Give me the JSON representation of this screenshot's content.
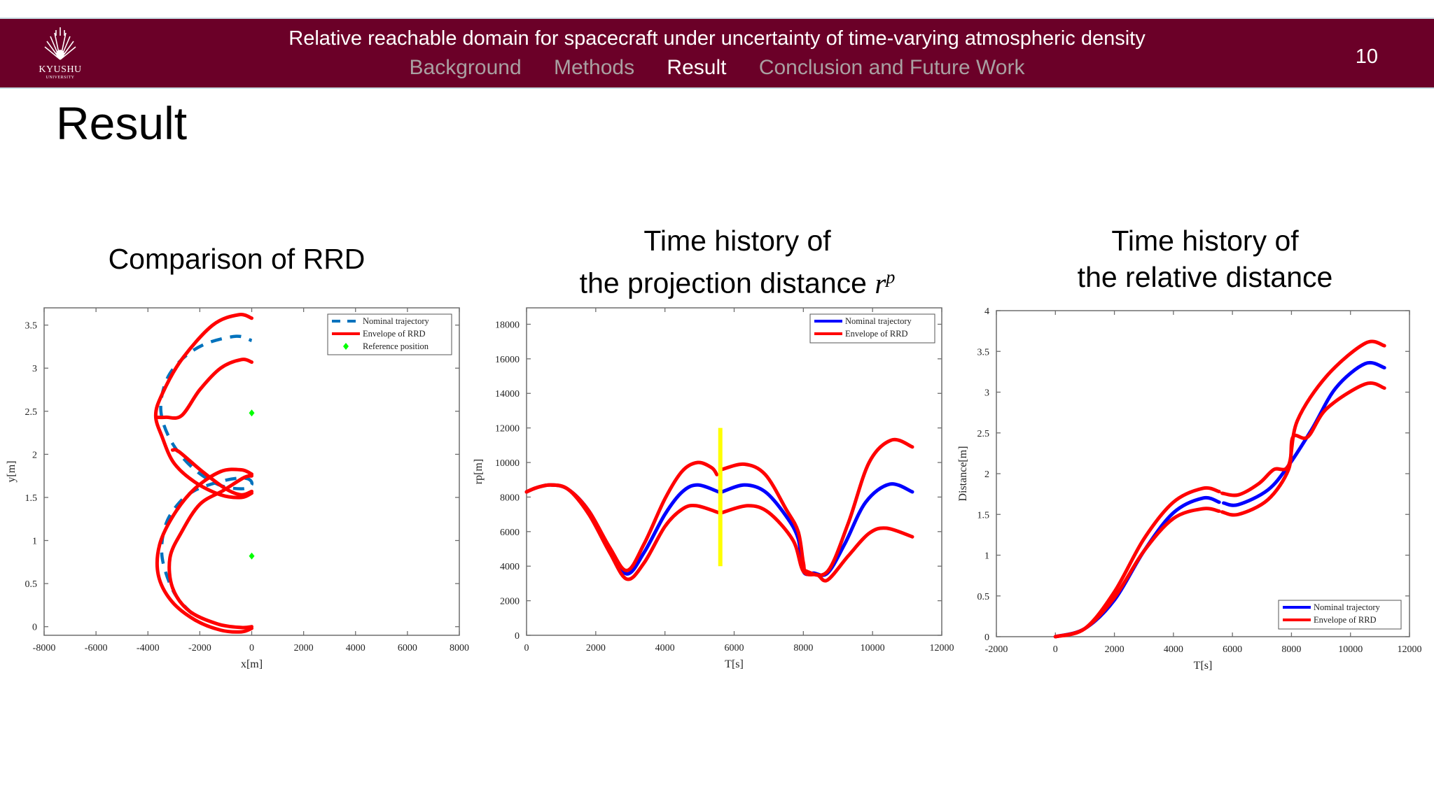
{
  "header": {
    "title": "Relative reachable domain for spacecraft under uncertainty of time-varying atmospheric density",
    "nav": [
      {
        "label": "Background",
        "active": false
      },
      {
        "label": "Methods",
        "active": false
      },
      {
        "label": "Result",
        "active": true
      },
      {
        "label": "Conclusion and Future Work",
        "active": false
      }
    ],
    "page_number": "10",
    "logo": {
      "name": "KYUSHU",
      "sub": "UNIVERSITY",
      "icon": "university-crest-icon"
    },
    "colors": {
      "bar": "#6b0028",
      "active": "#ffffff",
      "inactive": "#a9a0a2"
    }
  },
  "slide_title": "Result",
  "chart_titles": [
    {
      "line1": "Comparison of RRD"
    },
    {
      "line1": "Time history of",
      "line2": "the projection distance",
      "symbol": "r",
      "superscript": "p"
    },
    {
      "line1": "Time history of",
      "line2": "the relative distance"
    }
  ],
  "chart_data": [
    {
      "type": "line",
      "xlabel": "x[m]",
      "ylabel": "y[m]",
      "xlim": [
        -8000,
        8000
      ],
      "ylim": [
        -0.1,
        3.7
      ],
      "xticks": [
        -8000,
        -6000,
        -4000,
        -2000,
        0,
        2000,
        4000,
        6000,
        8000
      ],
      "yticks": [
        0,
        0.5,
        1,
        1.5,
        2,
        2.5,
        3,
        3.5
      ],
      "grid": false,
      "legend_position": "top-right",
      "series": [
        {
          "name": "Nominal trajectory",
          "color": "#0072bd",
          "style": "dashed",
          "segments": [
            [
              [
                -2300,
                0.15
              ],
              [
                -3000,
                0.4
              ],
              [
                -3450,
                0.8
              ],
              [
                -3350,
                1.15
              ],
              [
                -2900,
                1.4
              ],
              [
                -2200,
                1.58
              ],
              [
                -1000,
                1.7
              ],
              [
                -200,
                1.72
              ],
              [
                0,
                1.65
              ],
              [
                -400,
                1.6
              ],
              [
                -1300,
                1.65
              ],
              [
                -2300,
                1.85
              ],
              [
                -3100,
                2.15
              ],
              [
                -3500,
                2.5
              ],
              [
                -3300,
                2.85
              ],
              [
                -2700,
                3.1
              ],
              [
                -1800,
                3.28
              ],
              [
                -600,
                3.37
              ],
              [
                0,
                3.32
              ]
            ]
          ]
        },
        {
          "name": "Envelope of RRD",
          "color": "#ff0000",
          "style": "solid",
          "segments": [
            [
              [
                0,
                3.58
              ],
              [
                -500,
                3.62
              ],
              [
                -1500,
                3.5
              ],
              [
                -2700,
                3.1
              ],
              [
                -3450,
                2.7
              ],
              [
                -3700,
                2.45
              ],
              [
                -3450,
                2.2
              ],
              [
                -3000,
                1.9
              ],
              [
                -2200,
                1.68
              ],
              [
                -1200,
                1.53
              ],
              [
                -400,
                1.5
              ],
              [
                0,
                1.55
              ]
            ],
            [
              [
                0,
                3.07
              ],
              [
                -400,
                3.1
              ],
              [
                -1200,
                3.0
              ],
              [
                -2000,
                2.75
              ],
              [
                -2700,
                2.45
              ],
              [
                -3300,
                2.43
              ],
              [
                -3650,
                2.43
              ]
            ],
            [
              [
                -3050,
                2.05
              ],
              [
                -2800,
                2.03
              ],
              [
                -1900,
                1.8
              ],
              [
                -1000,
                1.6
              ],
              [
                -400,
                1.53
              ],
              [
                0,
                1.57
              ]
            ],
            [
              [
                0,
                1.77
              ],
              [
                -400,
                1.82
              ],
              [
                -1200,
                1.8
              ],
              [
                -2200,
                1.6
              ],
              [
                -3000,
                1.3
              ],
              [
                -3550,
                0.95
              ],
              [
                -3600,
                0.6
              ],
              [
                -3100,
                0.3
              ],
              [
                -2200,
                0.08
              ],
              [
                -1200,
                -0.04
              ],
              [
                -400,
                -0.06
              ],
              [
                0,
                -0.02
              ]
            ],
            [
              [
                0,
                1.75
              ],
              [
                -300,
                1.73
              ],
              [
                -1100,
                1.58
              ],
              [
                -2000,
                1.42
              ],
              [
                -2700,
                1.1
              ],
              [
                -3150,
                0.8
              ],
              [
                -3050,
                0.45
              ],
              [
                -2400,
                0.18
              ],
              [
                -1300,
                0.03
              ],
              [
                -400,
                -0.01
              ],
              [
                0,
                0.0
              ]
            ]
          ]
        },
        {
          "name": "Reference position",
          "color": "#00ff00",
          "style": "marker",
          "points": [
            [
              0,
              2.48
            ],
            [
              0,
              0.82
            ]
          ]
        }
      ]
    },
    {
      "type": "line",
      "xlabel": "T[s]",
      "ylabel": "rp[m]",
      "xlim": [
        0,
        12000
      ],
      "ylim": [
        0,
        18950
      ],
      "xticks": [
        0,
        2000,
        4000,
        6000,
        8000,
        10000,
        12000
      ],
      "yticks": [
        0,
        2000,
        4000,
        6000,
        8000,
        10000,
        12000,
        14000,
        16000,
        18000
      ],
      "grid": false,
      "legend_position": "top-right",
      "series": [
        {
          "name": "Nominal trajectory",
          "color": "#0000ff",
          "style": "solid",
          "segments": [
            [
              [
                0,
                8300
              ],
              [
                300,
                8550
              ],
              [
                700,
                8700
              ],
              [
                1200,
                8450
              ],
              [
                1800,
                7200
              ],
              [
                2400,
                5000
              ],
              [
                2900,
                3550
              ],
              [
                3400,
                4800
              ],
              [
                4000,
                7000
              ],
              [
                4500,
                8300
              ],
              [
                4950,
                8700
              ],
              [
                5550,
                8300
              ]
            ],
            [
              [
                5650,
                8300
              ],
              [
                6300,
                8700
              ],
              [
                6900,
                8300
              ],
              [
                7500,
                6900
              ],
              [
                7850,
                5600
              ],
              [
                8000,
                3700
              ],
              [
                8300,
                3600
              ],
              [
                8700,
                3600
              ],
              [
                9200,
                5300
              ],
              [
                9800,
                7700
              ],
              [
                10500,
                8750
              ],
              [
                11150,
                8300
              ]
            ]
          ]
        },
        {
          "name": "Envelope of RRD",
          "color": "#ff0000",
          "style": "solid",
          "segments": [
            [
              [
                0,
                8300
              ],
              [
                300,
                8550
              ],
              [
                700,
                8700
              ],
              [
                1200,
                8450
              ],
              [
                1800,
                7200
              ],
              [
                2400,
                5100
              ],
              [
                2900,
                3750
              ],
              [
                3400,
                5300
              ],
              [
                4000,
                7900
              ],
              [
                4500,
                9500
              ],
              [
                4950,
                10000
              ],
              [
                5350,
                9700
              ],
              [
                5500,
                9300
              ]
            ],
            [
              [
                5650,
                9600
              ],
              [
                6300,
                9900
              ],
              [
                6900,
                9300
              ],
              [
                7500,
                7300
              ],
              [
                7850,
                6000
              ],
              [
                8000,
                4200
              ],
              [
                8100,
                3700
              ],
              [
                8700,
                3700
              ],
              [
                9300,
                6500
              ],
              [
                9900,
                10000
              ],
              [
                10550,
                11300
              ],
              [
                11150,
                10900
              ]
            ],
            [
              [
                0,
                8300
              ],
              [
                300,
                8550
              ],
              [
                700,
                8700
              ],
              [
                1200,
                8450
              ],
              [
                1800,
                7000
              ],
              [
                2400,
                4800
              ],
              [
                2900,
                3250
              ],
              [
                3400,
                4200
              ],
              [
                4000,
                6300
              ],
              [
                4500,
                7300
              ],
              [
                4900,
                7500
              ],
              [
                5550,
                7100
              ]
            ],
            [
              [
                5650,
                7100
              ],
              [
                6400,
                7500
              ],
              [
                7000,
                7100
              ],
              [
                7700,
                5500
              ],
              [
                8000,
                3700
              ],
              [
                8400,
                3500
              ],
              [
                8700,
                3200
              ],
              [
                9300,
                4600
              ],
              [
                9900,
                5900
              ],
              [
                10400,
                6200
              ],
              [
                11150,
                5700
              ]
            ]
          ]
        }
      ],
      "reference_line": {
        "x": 5600,
        "y_from": 4000,
        "y_to": 12000,
        "color": "#ffff00"
      }
    },
    {
      "type": "line",
      "xlabel": "T[s]",
      "ylabel": "Distance[m]",
      "xlim": [
        -2000,
        12000
      ],
      "ylim": [
        0,
        4
      ],
      "xticks": [
        -2000,
        0,
        2000,
        4000,
        6000,
        8000,
        10000,
        12000
      ],
      "yticks": [
        0,
        0.5,
        1,
        1.5,
        2,
        2.5,
        3,
        3.5,
        4
      ],
      "grid": false,
      "legend_position": "bottom-right",
      "series": [
        {
          "name": "Nominal trajectory",
          "color": "#0000ff",
          "style": "solid",
          "segments": [
            [
              [
                0,
                0
              ],
              [
                1000,
                0.1
              ],
              [
                2000,
                0.45
              ],
              [
                3000,
                1.05
              ],
              [
                4000,
                1.52
              ],
              [
                5000,
                1.7
              ],
              [
                5550,
                1.65
              ]
            ],
            [
              [
                5700,
                1.64
              ],
              [
                6200,
                1.62
              ],
              [
                7200,
                1.8
              ],
              [
                7900,
                2.1
              ],
              [
                8700,
                2.55
              ],
              [
                9500,
                3.05
              ],
              [
                10500,
                3.35
              ],
              [
                11150,
                3.3
              ]
            ]
          ]
        },
        {
          "name": "Envelope of RRD",
          "color": "#ff0000",
          "style": "solid",
          "segments": [
            [
              [
                0,
                0
              ],
              [
                1000,
                0.1
              ],
              [
                2000,
                0.55
              ],
              [
                3000,
                1.2
              ],
              [
                4000,
                1.65
              ],
              [
                5000,
                1.82
              ],
              [
                5550,
                1.78
              ]
            ],
            [
              [
                5650,
                1.76
              ],
              [
                6200,
                1.74
              ],
              [
                6900,
                1.88
              ],
              [
                7400,
                2.05
              ],
              [
                7900,
                2.1
              ],
              [
                8200,
                2.65
              ],
              [
                9200,
                3.2
              ],
              [
                10500,
                3.6
              ],
              [
                11150,
                3.57
              ]
            ],
            [
              [
                0,
                0
              ],
              [
                1000,
                0.1
              ],
              [
                2000,
                0.48
              ],
              [
                3000,
                1.05
              ],
              [
                4000,
                1.45
              ],
              [
                5000,
                1.57
              ],
              [
                5550,
                1.54
              ]
            ],
            [
              [
                5650,
                1.53
              ],
              [
                6200,
                1.5
              ],
              [
                7200,
                1.68
              ],
              [
                7900,
                2.05
              ],
              [
                8050,
                2.45
              ],
              [
                8550,
                2.45
              ],
              [
                9200,
                2.8
              ],
              [
                10500,
                3.1
              ],
              [
                11150,
                3.05
              ]
            ]
          ]
        }
      ]
    }
  ]
}
